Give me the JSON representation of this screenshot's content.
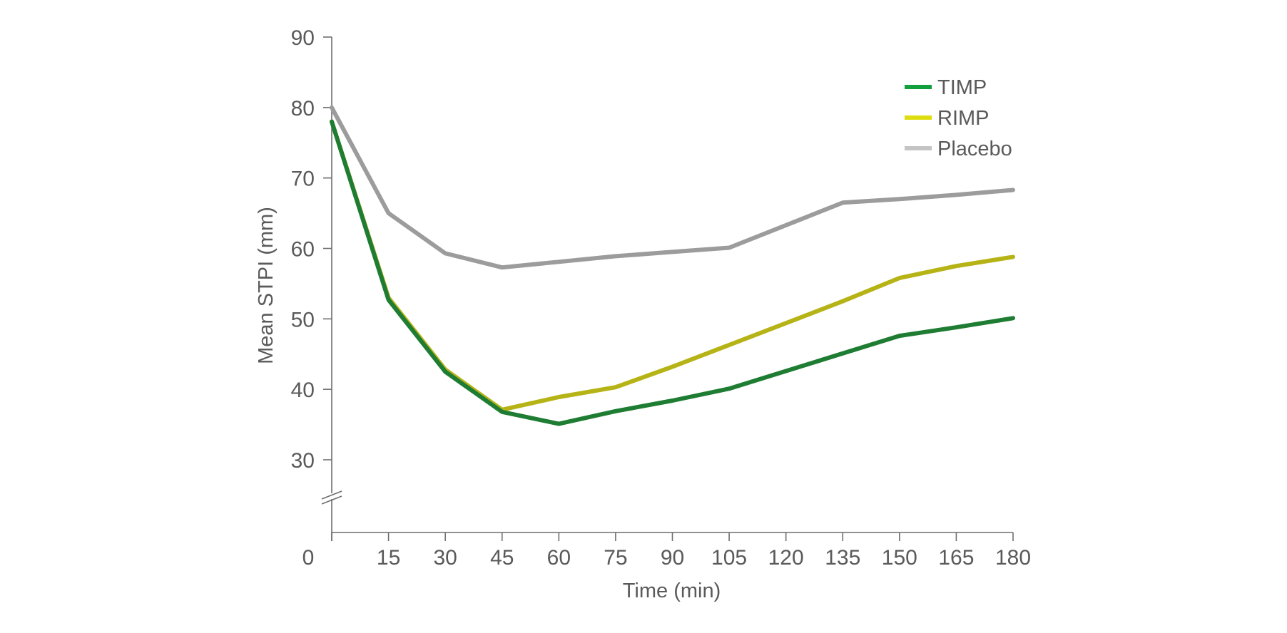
{
  "chart_data": {
    "type": "line",
    "title": "",
    "xlabel": "Time (min)",
    "ylabel": "Mean STPI (mm)",
    "x": [
      0,
      15,
      30,
      45,
      60,
      75,
      90,
      105,
      120,
      135,
      150,
      165,
      180
    ],
    "xlim": [
      0,
      180
    ],
    "x_ticks": [
      "15",
      "30",
      "45",
      "60",
      "75",
      "90",
      "105",
      "120",
      "135",
      "150",
      "165",
      "180"
    ],
    "origin_label": "0",
    "ylim": [
      30,
      90
    ],
    "y_ticks": [
      "30",
      "40",
      "50",
      "60",
      "70",
      "80",
      "90"
    ],
    "y_axis_break": true,
    "grid": false,
    "legend_position": "top-right",
    "series": [
      {
        "name": "TIMP",
        "color": "#1e7d32",
        "legend_color": "#13a03c",
        "values": [
          78,
          52.7,
          42.5,
          36.8,
          35.1,
          36.9,
          38.4,
          40.1,
          42.6,
          45.1,
          47.6,
          48.8,
          50.1
        ]
      },
      {
        "name": "RIMP",
        "color": "#b6b316",
        "legend_color": "#dedd0f",
        "values": [
          78,
          53,
          42.8,
          37.1,
          38.9,
          40.3,
          43.2,
          46.3,
          49.4,
          52.5,
          55.8,
          57.5,
          58.8
        ]
      },
      {
        "name": "Placebo",
        "color": "#9c9c9c",
        "legend_color": "#c4c4c4",
        "values": [
          80,
          65,
          59.3,
          57.3,
          58.1,
          58.9,
          59.5,
          60.1,
          63.3,
          66.5,
          67.0,
          67.6,
          68.3
        ]
      }
    ]
  }
}
